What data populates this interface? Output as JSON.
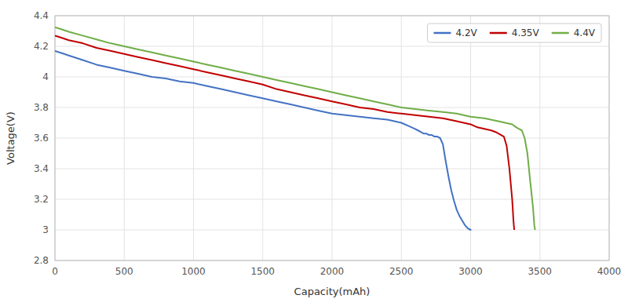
{
  "chart_data": {
    "type": "line",
    "xlabel": "Capacity(mAh)",
    "ylabel": "Voltage(V)",
    "xlim": [
      0,
      4000
    ],
    "ylim": [
      2.8,
      4.4
    ],
    "xticks": [
      0,
      500,
      1000,
      1500,
      2000,
      2500,
      3000,
      3500,
      4000
    ],
    "yticks": [
      2.8,
      3,
      3.2,
      3.4,
      3.6,
      3.8,
      4,
      4.2,
      4.4
    ],
    "grid": true,
    "legend": "upper right",
    "series": [
      {
        "name": "4.2V",
        "color": "#4472C4",
        "x": [
          0,
          50,
          100,
          200,
          300,
          400,
          500,
          600,
          700,
          800,
          900,
          1000,
          1100,
          1200,
          1300,
          1400,
          1500,
          1600,
          1700,
          1800,
          1900,
          2000,
          2100,
          2200,
          2300,
          2400,
          2450,
          2500,
          2550,
          2600,
          2620,
          2640,
          2660,
          2680,
          2700,
          2720,
          2740,
          2760,
          2780,
          2800,
          2820,
          2840,
          2860,
          2880,
          2900,
          2920,
          2940,
          2960,
          2980,
          3000,
          3005
        ],
        "values": [
          4.17,
          4.155,
          4.14,
          4.11,
          4.08,
          4.06,
          4.04,
          4.02,
          4.0,
          3.99,
          3.97,
          3.96,
          3.94,
          3.92,
          3.9,
          3.88,
          3.86,
          3.84,
          3.82,
          3.8,
          3.78,
          3.76,
          3.75,
          3.74,
          3.73,
          3.72,
          3.71,
          3.7,
          3.68,
          3.66,
          3.65,
          3.64,
          3.63,
          3.63,
          3.62,
          3.62,
          3.61,
          3.61,
          3.6,
          3.56,
          3.45,
          3.35,
          3.26,
          3.19,
          3.13,
          3.09,
          3.06,
          3.03,
          3.01,
          3.0,
          3.0
        ]
      },
      {
        "name": "4.35V",
        "color": "#C00000",
        "x": [
          0,
          50,
          100,
          200,
          300,
          400,
          500,
          600,
          700,
          800,
          900,
          1000,
          1100,
          1200,
          1300,
          1400,
          1500,
          1600,
          1700,
          1800,
          1900,
          2000,
          2100,
          2200,
          2300,
          2400,
          2500,
          2600,
          2700,
          2800,
          2900,
          2950,
          3000,
          3050,
          3100,
          3150,
          3180,
          3200,
          3220,
          3240,
          3260,
          3280,
          3300,
          3310,
          3315
        ],
        "values": [
          4.27,
          4.255,
          4.24,
          4.22,
          4.19,
          4.17,
          4.15,
          4.13,
          4.11,
          4.09,
          4.07,
          4.05,
          4.03,
          4.01,
          3.99,
          3.97,
          3.95,
          3.92,
          3.9,
          3.88,
          3.86,
          3.84,
          3.82,
          3.8,
          3.79,
          3.77,
          3.76,
          3.75,
          3.74,
          3.73,
          3.71,
          3.7,
          3.69,
          3.67,
          3.66,
          3.65,
          3.64,
          3.63,
          3.62,
          3.61,
          3.55,
          3.4,
          3.2,
          3.05,
          3.0
        ]
      },
      {
        "name": "4.4V",
        "color": "#70AD47",
        "x": [
          0,
          50,
          100,
          200,
          300,
          400,
          500,
          600,
          700,
          800,
          900,
          1000,
          1100,
          1200,
          1300,
          1400,
          1500,
          1600,
          1700,
          1800,
          1900,
          2000,
          2100,
          2200,
          2300,
          2400,
          2500,
          2600,
          2700,
          2800,
          2900,
          3000,
          3100,
          3200,
          3250,
          3300,
          3330,
          3350,
          3370,
          3390,
          3410,
          3430,
          3450,
          3460,
          3465
        ],
        "values": [
          4.325,
          4.31,
          4.295,
          4.27,
          4.245,
          4.22,
          4.2,
          4.18,
          4.16,
          4.14,
          4.12,
          4.1,
          4.08,
          4.06,
          4.04,
          4.02,
          4.0,
          3.98,
          3.96,
          3.94,
          3.92,
          3.9,
          3.88,
          3.86,
          3.84,
          3.82,
          3.8,
          3.79,
          3.78,
          3.77,
          3.76,
          3.74,
          3.73,
          3.71,
          3.7,
          3.69,
          3.67,
          3.66,
          3.65,
          3.6,
          3.5,
          3.32,
          3.15,
          3.03,
          3.0
        ]
      }
    ]
  }
}
